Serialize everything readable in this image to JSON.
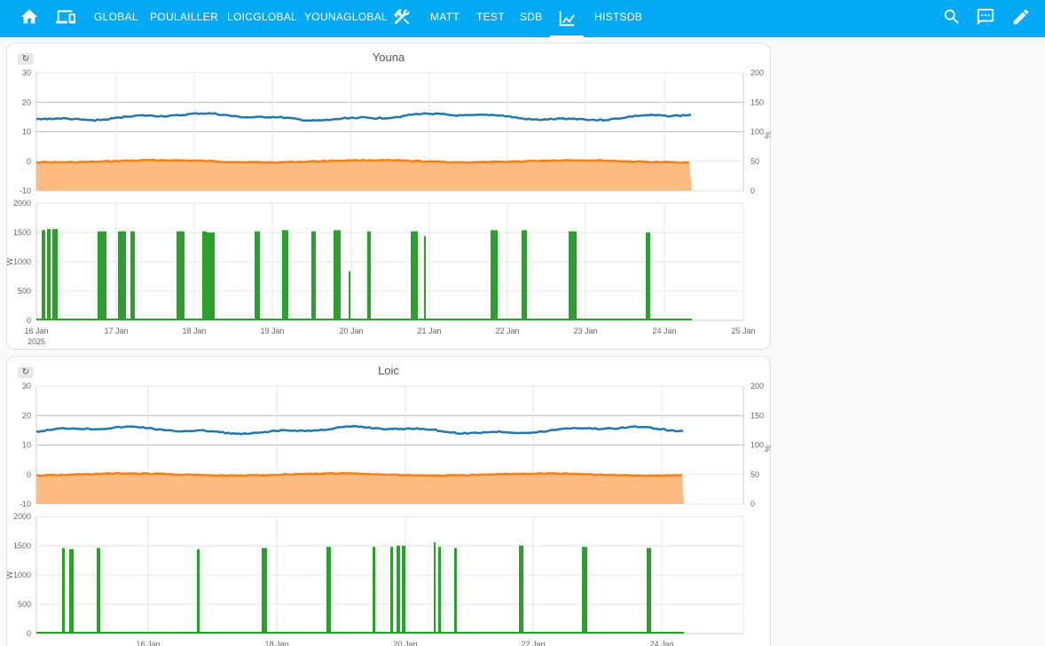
{
  "topbar": {
    "tabs": [
      {
        "label": "GLOBAL"
      },
      {
        "label": "POULAILLER"
      },
      {
        "label": "LOICGLOBAL"
      },
      {
        "label": "YOUNAGLOBAL"
      },
      {
        "label": "MATT"
      },
      {
        "label": "TEST"
      },
      {
        "label": "SDB"
      },
      {
        "label": "HISTSDB"
      }
    ],
    "icons": [
      "home-icon",
      "devices-icon",
      "tools-icon",
      "chart-line-icon",
      "search-icon",
      "assist-icon",
      "pencil-icon"
    ],
    "active_tab": "chart-line-icon",
    "color": "#03a9f4"
  },
  "cards": [
    {
      "title": "Youna",
      "refresh_glyph": "↻",
      "temp_chart": {
        "left_ticks": [
          "30",
          "20",
          "10",
          "0",
          "-10"
        ],
        "right_ticks": [
          "200",
          "150",
          "100",
          "50",
          "0"
        ],
        "right_unit": "%"
      },
      "power_chart": {
        "ticks": [
          "2000",
          "1500",
          "1000",
          "500",
          "0"
        ],
        "unit": "W"
      },
      "x_ticks": [
        "16 Jan",
        "17 Jan",
        "18 Jan",
        "19 Jan",
        "20 Jan",
        "21 Jan",
        "22 Jan",
        "23 Jan",
        "24 Jan",
        "25 Jan"
      ],
      "x_year": "2025"
    },
    {
      "title": "Loic",
      "refresh_glyph": "↻",
      "temp_chart": {
        "left_ticks": [
          "30",
          "20",
          "10",
          "0",
          "-10"
        ],
        "right_ticks": [
          "200",
          "150",
          "100",
          "50",
          "0"
        ],
        "right_unit": "%"
      },
      "power_chart": {
        "ticks": [
          "2000",
          "1500",
          "1000",
          "500",
          "0"
        ],
        "unit": "W"
      },
      "x_ticks": [
        "16 Jan",
        "18 Jan",
        "20 Jan",
        "22 Jan",
        "24 Jan"
      ],
      "x_year": ""
    }
  ],
  "colors": {
    "temperature": "#1f77b4",
    "outdoor_line": "#ff7f0e",
    "outdoor_fill": "#ffbb80",
    "power": "#2ca02c"
  }
}
